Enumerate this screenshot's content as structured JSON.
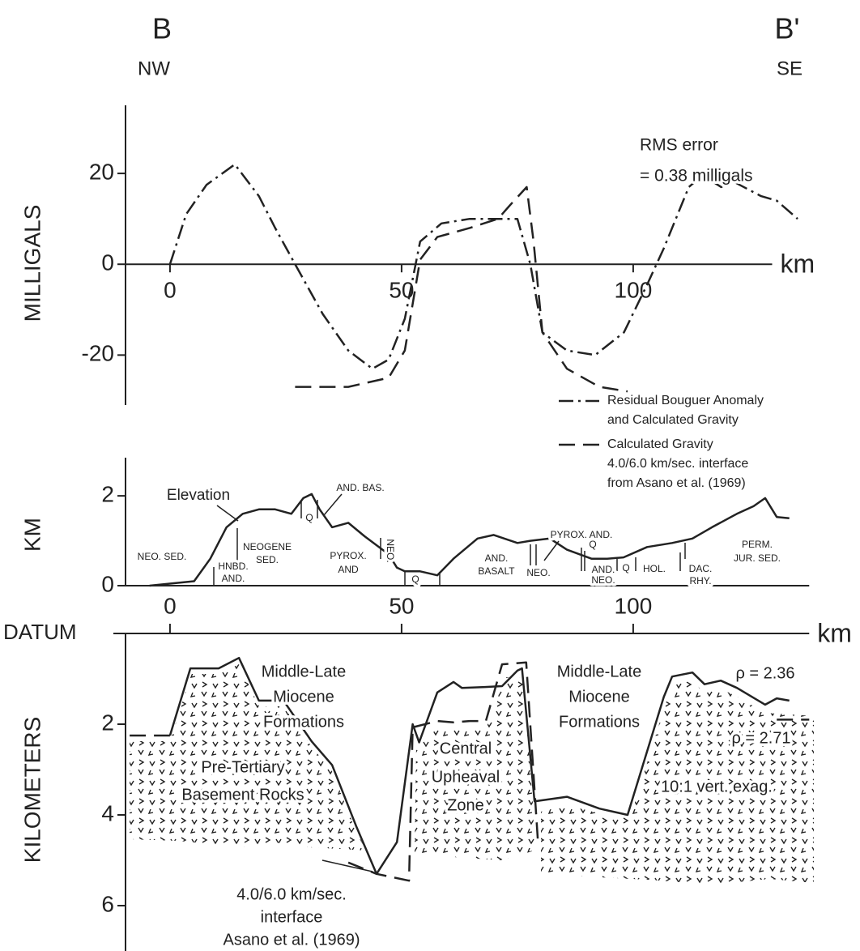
{
  "chart_data": [
    {
      "type": "line",
      "y_label": "MILLIGALS",
      "x_unit": "km",
      "xlim": [
        -9.6,
        130
      ],
      "ylim": [
        -31,
        35
      ],
      "xticks": [
        0,
        50,
        100
      ],
      "yticks": [
        -20,
        0,
        20
      ],
      "grid": false,
      "legend": "lower right",
      "series": [
        {
          "name": "Residual Bouguer Anomaly and Calculated Gravity",
          "color": "#222",
          "style": "dash-dot",
          "x": [
            0,
            3.5,
            7.9,
            14,
            19.2,
            22.7,
            27,
            33,
            38.5,
            43.7,
            47.2,
            50.7,
            54,
            58.6,
            64.7,
            71.7,
            75,
            77.8,
            80.4,
            85.7,
            91.8,
            98,
            103,
            106.6,
            112,
            115,
            119,
            122,
            127.6,
            131,
            135.5
          ],
          "values": [
            0,
            11,
            17.5,
            22,
            15,
            8,
            0,
            -11,
            -19,
            -23,
            -21,
            -12,
            5,
            9,
            10,
            10,
            10,
            0,
            -15,
            -19,
            -20,
            -15,
            -4.5,
            3.5,
            17,
            19.6,
            17,
            18,
            15,
            14,
            10
          ]
        },
        {
          "name": "Calculated Gravity",
          "note": [
            "4.0/6.0 km/sec. interface",
            "from Asano et al. (1969)"
          ],
          "color": "#222",
          "style": "dashed",
          "x": [
            27,
            38.5,
            47.2,
            50.7,
            54,
            57.7,
            64.7,
            70.8,
            73.4,
            77,
            78.5,
            80.4,
            85.7,
            92.7,
            98.8
          ],
          "values": [
            -27,
            -27,
            -25,
            -19,
            1,
            6,
            8,
            10,
            13,
            17,
            5,
            -15,
            -23,
            -27,
            -28
          ]
        }
      ],
      "annotations": [
        {
          "lines": [
            "B"
          ]
        },
        {
          "lines": [
            "NW"
          ]
        },
        {
          "lines": [
            "B'"
          ]
        },
        {
          "lines": [
            "SE"
          ]
        },
        {
          "lines": [
            "RMS error",
            "= 0.38 milligals"
          ]
        }
      ]
    },
    {
      "type": "line",
      "y_label": "KM",
      "xlim": [
        -9.6,
        138
      ],
      "ylim": [
        0,
        2.85
      ],
      "yticks": [
        0,
        2
      ],
      "grid": false,
      "series": [
        {
          "name": "Elevation",
          "color": "#222",
          "style": "solid",
          "x": [
            -4.4,
            5.2,
            8.7,
            12.2,
            15.7,
            19.2,
            22.7,
            26.2,
            28.8,
            30.6,
            32.3,
            35,
            38.5,
            42,
            47.2,
            49,
            50.7,
            54,
            57.7,
            61.2,
            66.4,
            69.9,
            75,
            77.8,
            82,
            85.7,
            91,
            94.4,
            97.9,
            103,
            108.4,
            112.8,
            117,
            122.4,
            126,
            128.5,
            131,
            133.7
          ],
          "values": [
            0,
            0.1,
            0.6,
            1.3,
            1.6,
            1.7,
            1.7,
            1.6,
            1.95,
            2.04,
            1.7,
            1.3,
            1.4,
            1.1,
            0.7,
            0.4,
            0.32,
            0.32,
            0.23,
            0.6,
            1.05,
            1.13,
            0.95,
            1.0,
            1.05,
            0.8,
            0.6,
            0.6,
            0.63,
            0.86,
            0.95,
            1.05,
            1.3,
            1.6,
            1.77,
            1.95,
            1.53,
            1.5
          ]
        }
      ],
      "annotations": [
        {
          "lines": [
            "NEO. SED."
          ]
        },
        {
          "lines": [
            "HNBD.",
            "AND."
          ]
        },
        {
          "lines": [
            "NEOGENE",
            "SED."
          ]
        },
        {
          "lines": [
            "Q"
          ]
        },
        {
          "lines": [
            "AND. BAS."
          ]
        },
        {
          "lines": [
            "PYROX.",
            "AND"
          ]
        },
        {
          "lines": [
            "NEO."
          ]
        },
        {
          "lines": [
            "Q"
          ]
        },
        {
          "lines": [
            "AND.",
            "BASALT"
          ]
        },
        {
          "lines": [
            "NEO."
          ]
        },
        {
          "lines": [
            "PYROX. AND."
          ]
        },
        {
          "lines": [
            "Q"
          ]
        },
        {
          "lines": [
            "AND.",
            "NEO."
          ]
        },
        {
          "lines": [
            "Q"
          ]
        },
        {
          "lines": [
            "HOL."
          ]
        },
        {
          "lines": [
            "DAC.",
            "RHY."
          ]
        },
        {
          "lines": [
            "PERM.",
            "JUR. SED."
          ]
        }
      ]
    },
    {
      "type": "line",
      "y_label": "KILOMETERS",
      "x_unit": "km",
      "datum_label": "DATUM",
      "y_inverted": true,
      "xlim": [
        -9.6,
        138
      ],
      "ylim": [
        0,
        7
      ],
      "xticks": [
        0,
        50,
        100
      ],
      "yticks": [
        2,
        4,
        6
      ],
      "grid": false,
      "series": [
        {
          "color": "#222",
          "style": "solid",
          "x": [
            0,
            4.4,
            10.5,
            14.9,
            19.2,
            24.5,
            30.6,
            35,
            40.2,
            44.6,
            49,
            52.4,
            53.8,
            57.7,
            61.2,
            63,
            68,
            71.7,
            75,
            76,
            78.7,
            85.7,
            92.7,
            98.8,
            106.6,
            108.4,
            112.8,
            115.4,
            118.9,
            122.4,
            128.5,
            131,
            133.7
          ],
          "values": [
            2.25,
            0.77,
            0.77,
            0.54,
            1.48,
            1.48,
            2.38,
            2.9,
            4.25,
            5.3,
            4.6,
            2.0,
            2.4,
            1.3,
            1.07,
            1.2,
            1.18,
            1.16,
            0.82,
            0.77,
            3.7,
            3.6,
            3.86,
            4.0,
            1.4,
            0.95,
            0.86,
            1.12,
            1.04,
            1.2,
            1.57,
            1.43,
            1.48
          ]
        },
        {
          "color": "#222",
          "style": "dashed",
          "x": [
            -8.7,
            0,
            null,
            38.5,
            44.6,
            51.6,
            52.4,
            57.7,
            61.2,
            64.7,
            68.2,
            71.7,
            76.9,
            79.5,
            null,
            131,
            138
          ],
          "values": [
            2.25,
            2.25,
            null,
            5.05,
            5.3,
            5.45,
            2.07,
            1.93,
            1.96,
            1.93,
            1.93,
            0.68,
            0.64,
            4.7,
            null,
            1.9,
            1.9
          ]
        }
      ],
      "annotations": [
        {
          "lines": [
            "Middle-Late",
            "Miocene",
            "Formations"
          ]
        },
        {
          "lines": [
            "Middle-Late",
            "Miocene",
            "Formations"
          ]
        },
        {
          "lines": [
            "ρ = 2.36"
          ]
        },
        {
          "lines": [
            "ρ = 2.71"
          ]
        },
        {
          "lines": [
            "Pre-Tertiary",
            "Basement Rocks"
          ]
        },
        {
          "lines": [
            "Central",
            "Upheaval",
            "Zone"
          ]
        },
        {
          "lines": [
            "10:1 vert. exag."
          ]
        },
        {
          "lines": [
            "4.0/6.0 km/sec.",
            "interface",
            "Asano et al. (1969)"
          ]
        }
      ]
    }
  ]
}
